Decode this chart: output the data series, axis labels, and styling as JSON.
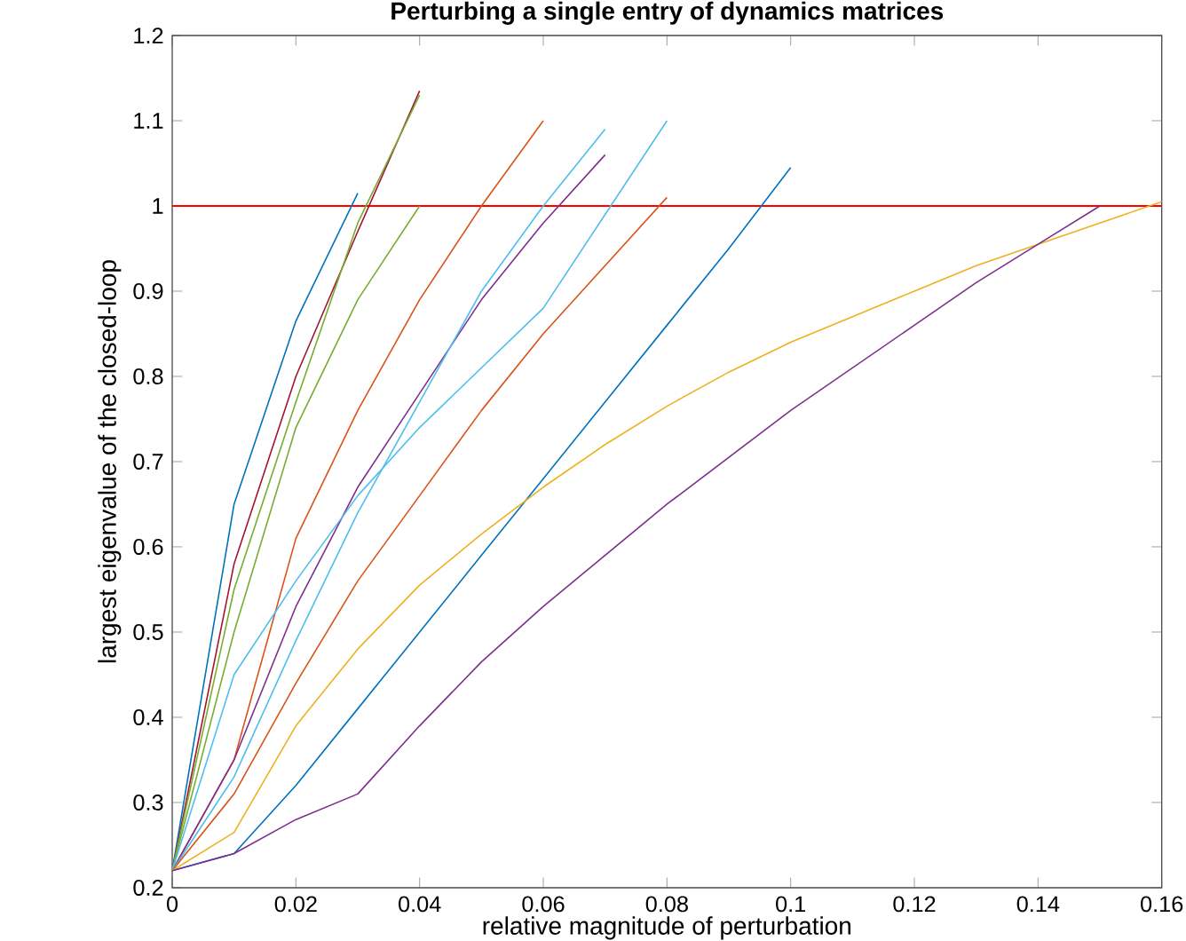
{
  "chart_data": {
    "type": "line",
    "title": "Perturbing a single entry of dynamics matrices",
    "xlabel": "relative magnitude of perturbation",
    "ylabel": "largest eigenvalue of the closed-loop",
    "xlim": [
      0,
      0.16
    ],
    "ylim": [
      0.2,
      1.2
    ],
    "xticks": [
      0,
      0.02,
      0.04,
      0.06,
      0.08,
      0.1,
      0.12,
      0.14,
      0.16
    ],
    "yticks": [
      0.2,
      0.3,
      0.4,
      0.5,
      0.6,
      0.7,
      0.8,
      0.9,
      1,
      1.1,
      1.2
    ],
    "grid": false,
    "marker": "none",
    "line_style": "solid",
    "ref_lines": [
      {
        "axis": "y",
        "value": 1,
        "color": "#ff0000"
      }
    ],
    "series": [
      {
        "color": "#0072bd",
        "x": [
          0,
          0.01,
          0.02,
          0.03
        ],
        "values": [
          0.22,
          0.65,
          0.865,
          1.015
        ]
      },
      {
        "color": "#a2142f",
        "x": [
          0,
          0.01,
          0.02,
          0.03,
          0.04
        ],
        "values": [
          0.22,
          0.58,
          0.8,
          0.97,
          1.135
        ]
      },
      {
        "color": "#77ac30",
        "x": [
          0,
          0.01,
          0.02,
          0.03,
          0.04
        ],
        "values": [
          0.22,
          0.55,
          0.77,
          0.98,
          1.13
        ]
      },
      {
        "color": "#77ac30",
        "x": [
          0,
          0.01,
          0.02,
          0.03,
          0.04
        ],
        "values": [
          0.22,
          0.5,
          0.74,
          0.89,
          1.0
        ]
      },
      {
        "color": "#d95319",
        "x": [
          0,
          0.01,
          0.02,
          0.03,
          0.04,
          0.05,
          0.06
        ],
        "values": [
          0.22,
          0.35,
          0.61,
          0.76,
          0.89,
          1.0,
          1.1
        ]
      },
      {
        "color": "#7e2f8e",
        "x": [
          0,
          0.01,
          0.02,
          0.03,
          0.04,
          0.05,
          0.06,
          0.07
        ],
        "values": [
          0.22,
          0.35,
          0.53,
          0.67,
          0.78,
          0.89,
          0.98,
          1.06
        ]
      },
      {
        "color": "#4dbeee",
        "x": [
          0,
          0.01,
          0.02,
          0.03,
          0.04,
          0.05,
          0.06,
          0.07
        ],
        "values": [
          0.22,
          0.33,
          0.49,
          0.64,
          0.77,
          0.9,
          1.0,
          1.09
        ]
      },
      {
        "color": "#4dbeee",
        "x": [
          0,
          0.01,
          0.02,
          0.03,
          0.04,
          0.05,
          0.06,
          0.07,
          0.08
        ],
        "values": [
          0.22,
          0.45,
          0.56,
          0.66,
          0.74,
          0.81,
          0.88,
          0.99,
          1.1
        ]
      },
      {
        "color": "#d95319",
        "x": [
          0,
          0.01,
          0.02,
          0.03,
          0.04,
          0.05,
          0.06,
          0.07,
          0.08
        ],
        "values": [
          0.22,
          0.31,
          0.44,
          0.56,
          0.66,
          0.76,
          0.85,
          0.93,
          1.01
        ]
      },
      {
        "color": "#0072bd",
        "x": [
          0,
          0.01,
          0.02,
          0.03,
          0.04,
          0.05,
          0.06,
          0.07,
          0.08,
          0.09,
          0.1
        ],
        "values": [
          0.22,
          0.24,
          0.32,
          0.41,
          0.5,
          0.59,
          0.68,
          0.77,
          0.86,
          0.95,
          1.045
        ]
      },
      {
        "color": "#edb120",
        "x": [
          0,
          0.01,
          0.02,
          0.03,
          0.04,
          0.05,
          0.06,
          0.07,
          0.08,
          0.09,
          0.1,
          0.11,
          0.12,
          0.13,
          0.14,
          0.15,
          0.16
        ],
        "values": [
          0.22,
          0.265,
          0.39,
          0.48,
          0.555,
          0.615,
          0.67,
          0.72,
          0.765,
          0.805,
          0.84,
          0.87,
          0.9,
          0.93,
          0.955,
          0.98,
          1.005
        ]
      },
      {
        "color": "#7e2f8e",
        "x": [
          0,
          0.01,
          0.02,
          0.03,
          0.04,
          0.05,
          0.06,
          0.07,
          0.08,
          0.09,
          0.1,
          0.11,
          0.12,
          0.13,
          0.14,
          0.15
        ],
        "values": [
          0.22,
          0.24,
          0.28,
          0.31,
          0.39,
          0.465,
          0.53,
          0.59,
          0.65,
          0.705,
          0.76,
          0.81,
          0.86,
          0.91,
          0.955,
          1.0
        ]
      }
    ]
  }
}
